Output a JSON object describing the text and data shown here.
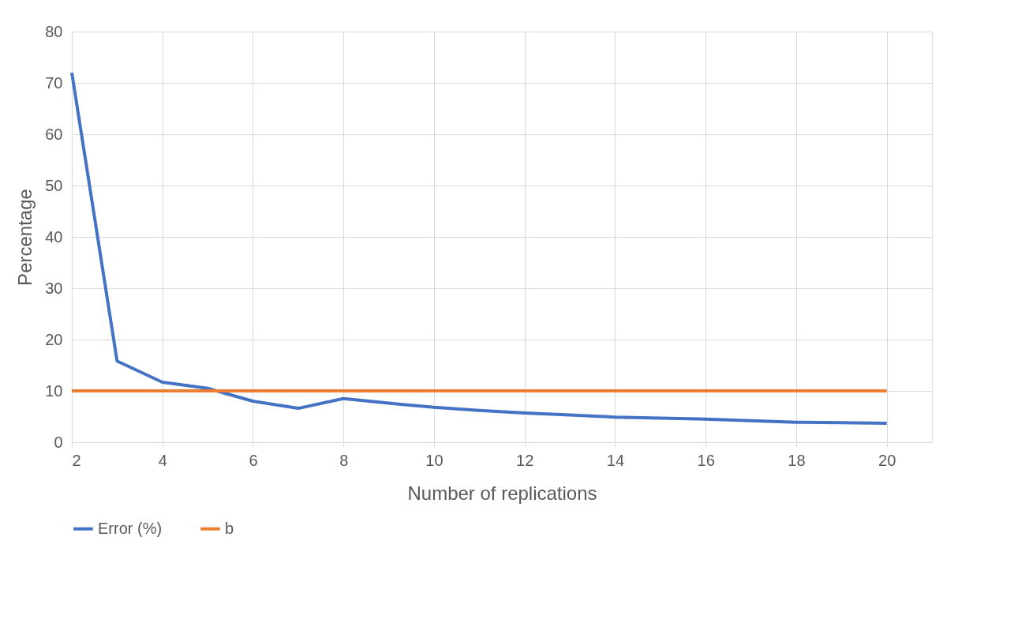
{
  "chart_data": {
    "type": "line",
    "xlabel": "Number of replications",
    "ylabel": "Percentage",
    "xlim": [
      2,
      21
    ],
    "xticks": [
      2,
      4,
      6,
      8,
      10,
      12,
      14,
      16,
      18,
      20
    ],
    "ylim": [
      0,
      80
    ],
    "yticks": [
      0,
      10,
      20,
      30,
      40,
      50,
      60,
      70,
      80
    ],
    "grid": true,
    "legend": "bottom",
    "marker": "none",
    "line_style": "solid",
    "series": [
      {
        "name": "Error (%)",
        "color": "#4472c4",
        "x": [
          2,
          3,
          4,
          5,
          6,
          7,
          8,
          9,
          10,
          11,
          12,
          13,
          14,
          15,
          16,
          17,
          18,
          19,
          20
        ],
        "values": [
          72,
          15.8,
          11.7,
          10.5,
          8.0,
          6.6,
          8.5,
          7.6,
          6.8,
          6.2,
          5.7,
          5.3,
          4.9,
          4.7,
          4.5,
          4.2,
          3.9,
          3.8,
          3.7
        ]
      },
      {
        "name": "b",
        "color": "#ed7d31",
        "x": [
          2,
          20
        ],
        "values": [
          10,
          10
        ]
      }
    ]
  }
}
